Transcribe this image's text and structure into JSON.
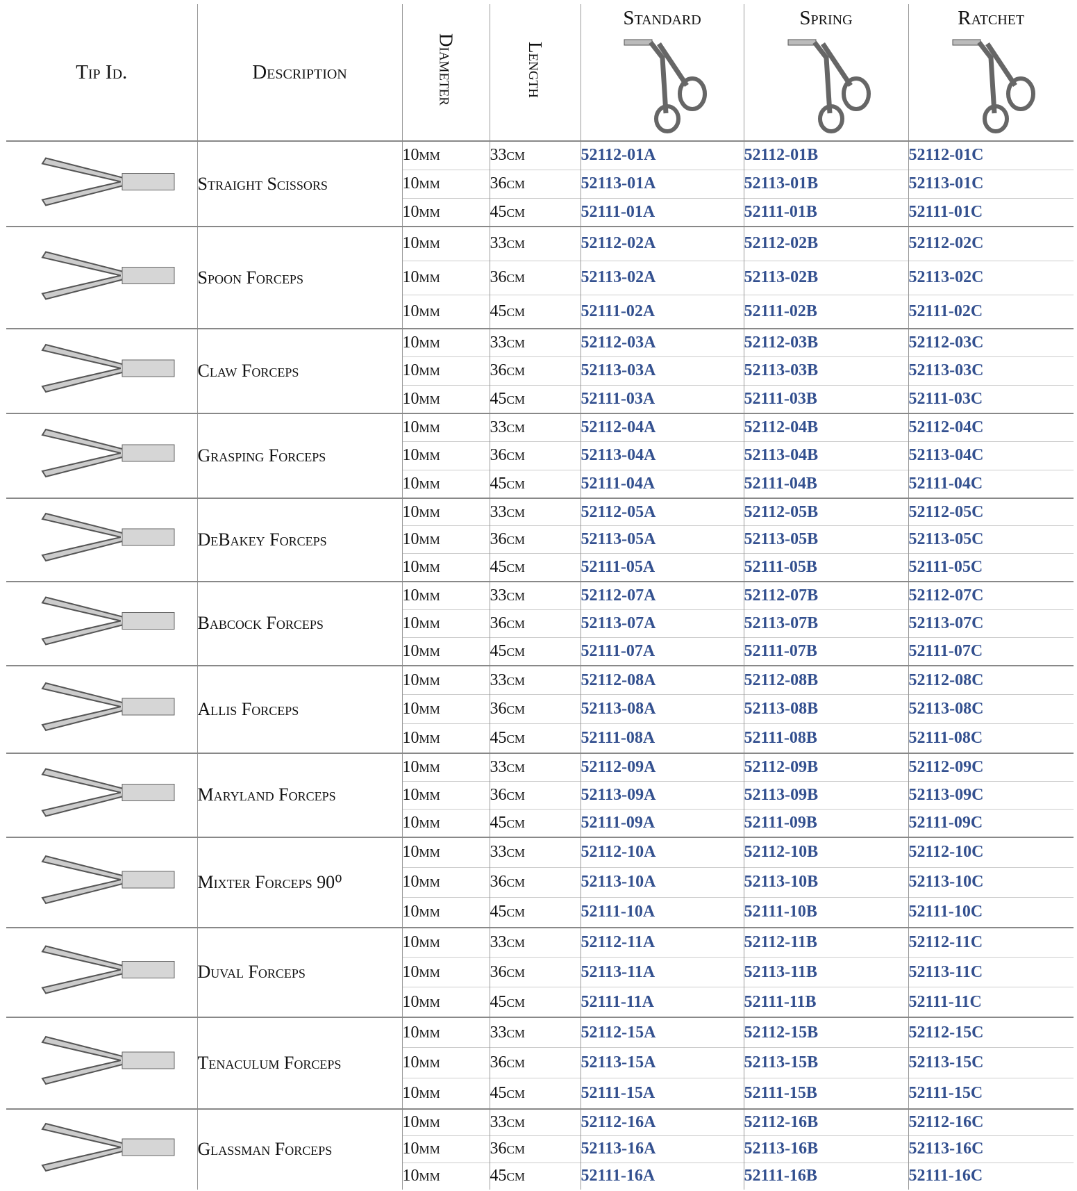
{
  "header": {
    "columns": [
      "Tip Id.",
      "Description",
      "Diameter",
      "Length",
      "Standard",
      "Spring",
      "Ratchet"
    ]
  },
  "rows": [
    {
      "description": "Straight Scissors",
      "items": [
        {
          "diameter": "10mm",
          "length": "33cm",
          "standard": "52112-01A",
          "spring": "52112-01B",
          "ratchet": "52112-01C"
        },
        {
          "diameter": "10mm",
          "length": "36cm",
          "standard": "52113-01A",
          "spring": "52113-01B",
          "ratchet": "52113-01C"
        },
        {
          "diameter": "10mm",
          "length": "45cm",
          "standard": "52111-01A",
          "spring": "52111-01B",
          "ratchet": "52111-01C"
        }
      ]
    },
    {
      "description": "Spoon Forceps",
      "items": [
        {
          "diameter": "10mm",
          "length": "33cm",
          "standard": "52112-02A",
          "spring": "52112-02B",
          "ratchet": "52112-02C"
        },
        {
          "diameter": "10mm",
          "length": "36cm",
          "standard": "52113-02A",
          "spring": "52113-02B",
          "ratchet": "52113-02C"
        },
        {
          "diameter": "10mm",
          "length": "45cm",
          "standard": "52111-02A",
          "spring": "52111-02B",
          "ratchet": "52111-02C"
        }
      ]
    },
    {
      "description": "Claw Forceps",
      "items": [
        {
          "diameter": "10mm",
          "length": "33cm",
          "standard": "52112-03A",
          "spring": "52112-03B",
          "ratchet": "52112-03C"
        },
        {
          "diameter": "10mm",
          "length": "36cm",
          "standard": "52113-03A",
          "spring": "52113-03B",
          "ratchet": "52113-03C"
        },
        {
          "diameter": "10mm",
          "length": "45cm",
          "standard": "52111-03A",
          "spring": "52111-03B",
          "ratchet": "52111-03C"
        }
      ]
    },
    {
      "description": "Grasping Forceps",
      "items": [
        {
          "diameter": "10mm",
          "length": "33cm",
          "standard": "52112-04A",
          "spring": "52112-04B",
          "ratchet": "52112-04C"
        },
        {
          "diameter": "10mm",
          "length": "36cm",
          "standard": "52113-04A",
          "spring": "52113-04B",
          "ratchet": "52113-04C"
        },
        {
          "diameter": "10mm",
          "length": "45cm",
          "standard": "52111-04A",
          "spring": "52111-04B",
          "ratchet": "52111-04C"
        }
      ]
    },
    {
      "description": "DeBakey Forceps",
      "items": [
        {
          "diameter": "10mm",
          "length": "33cm",
          "standard": "52112-05A",
          "spring": "52112-05B",
          "ratchet": "52112-05C"
        },
        {
          "diameter": "10mm",
          "length": "36cm",
          "standard": "52113-05A",
          "spring": "52113-05B",
          "ratchet": "52113-05C"
        },
        {
          "diameter": "10mm",
          "length": "45cm",
          "standard": "52111-05A",
          "spring": "52111-05B",
          "ratchet": "52111-05C"
        }
      ]
    },
    {
      "description": "Babcock Forceps",
      "items": [
        {
          "diameter": "10mm",
          "length": "33cm",
          "standard": "52112-07A",
          "spring": "52112-07B",
          "ratchet": "52112-07C"
        },
        {
          "diameter": "10mm",
          "length": "36cm",
          "standard": "52113-07A",
          "spring": "52113-07B",
          "ratchet": "52113-07C"
        },
        {
          "diameter": "10mm",
          "length": "45cm",
          "standard": "52111-07A",
          "spring": "52111-07B",
          "ratchet": "52111-07C"
        }
      ]
    },
    {
      "description": "Allis Forceps",
      "items": [
        {
          "diameter": "10mm",
          "length": "33cm",
          "standard": "52112-08A",
          "spring": "52112-08B",
          "ratchet": "52112-08C"
        },
        {
          "diameter": "10mm",
          "length": "36cm",
          "standard": "52113-08A",
          "spring": "52113-08B",
          "ratchet": "52113-08C"
        },
        {
          "diameter": "10mm",
          "length": "45cm",
          "standard": "52111-08A",
          "spring": "52111-08B",
          "ratchet": "52111-08C"
        }
      ]
    },
    {
      "description": "Maryland Forceps",
      "items": [
        {
          "diameter": "10mm",
          "length": "33cm",
          "standard": "52112-09A",
          "spring": "52112-09B",
          "ratchet": "52112-09C"
        },
        {
          "diameter": "10mm",
          "length": "36cm",
          "standard": "52113-09A",
          "spring": "52113-09B",
          "ratchet": "52113-09C"
        },
        {
          "diameter": "10mm",
          "length": "45cm",
          "standard": "52111-09A",
          "spring": "52111-09B",
          "ratchet": "52111-09C"
        }
      ]
    },
    {
      "description": "Mixter Forceps 90⁰",
      "items": [
        {
          "diameter": "10mm",
          "length": "33cm",
          "standard": "52112-10A",
          "spring": "52112-10B",
          "ratchet": "52112-10C"
        },
        {
          "diameter": "10mm",
          "length": "36cm",
          "standard": "52113-10A",
          "spring": "52113-10B",
          "ratchet": "52113-10C"
        },
        {
          "diameter": "10mm",
          "length": "45cm",
          "standard": "52111-10A",
          "spring": "52111-10B",
          "ratchet": "52111-10C"
        }
      ]
    },
    {
      "description": "Duval Forceps",
      "items": [
        {
          "diameter": "10mm",
          "length": "33cm",
          "standard": "52112-11A",
          "spring": "52112-11B",
          "ratchet": "52112-11C"
        },
        {
          "diameter": "10mm",
          "length": "36cm",
          "standard": "52113-11A",
          "spring": "52113-11B",
          "ratchet": "52113-11C"
        },
        {
          "diameter": "10mm",
          "length": "45cm",
          "standard": "52111-11A",
          "spring": "52111-11B",
          "ratchet": "52111-11C"
        }
      ]
    },
    {
      "description": "Tenaculum Forceps",
      "items": [
        {
          "diameter": "10mm",
          "length": "33cm",
          "standard": "52112-15A",
          "spring": "52112-15B",
          "ratchet": "52112-15C"
        },
        {
          "diameter": "10mm",
          "length": "36cm",
          "standard": "52113-15A",
          "spring": "52113-15B",
          "ratchet": "52113-15C"
        },
        {
          "diameter": "10mm",
          "length": "45cm",
          "standard": "52111-15A",
          "spring": "52111-15B",
          "ratchet": "52111-15C"
        }
      ]
    },
    {
      "description": "Glassman Forceps",
      "items": [
        {
          "diameter": "10mm",
          "length": "33cm",
          "standard": "52112-16A",
          "spring": "52112-16B",
          "ratchet": "52112-16C"
        },
        {
          "diameter": "10mm",
          "length": "36cm",
          "standard": "52113-16A",
          "spring": "52113-16B",
          "ratchet": "52113-16C"
        },
        {
          "diameter": "10mm",
          "length": "45cm",
          "standard": "52111-16A",
          "spring": "52111-16B",
          "ratchet": "52111-16C"
        }
      ]
    }
  ]
}
